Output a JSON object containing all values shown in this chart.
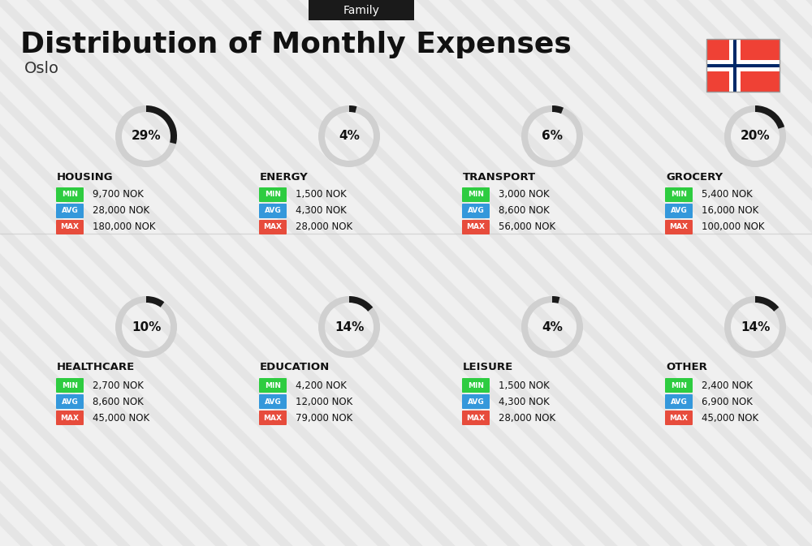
{
  "title": "Distribution of Monthly Expenses",
  "subtitle": "Oslo",
  "family_label": "Family",
  "bg_color": "#f0f0f0",
  "categories": [
    {
      "name": "HOUSING",
      "pct": 29,
      "min_val": "9,700 NOK",
      "avg_val": "28,000 NOK",
      "max_val": "180,000 NOK",
      "row": 0,
      "col": 0
    },
    {
      "name": "ENERGY",
      "pct": 4,
      "min_val": "1,500 NOK",
      "avg_val": "4,300 NOK",
      "max_val": "28,000 NOK",
      "row": 0,
      "col": 1
    },
    {
      "name": "TRANSPORT",
      "pct": 6,
      "min_val": "3,000 NOK",
      "avg_val": "8,600 NOK",
      "max_val": "56,000 NOK",
      "row": 0,
      "col": 2
    },
    {
      "name": "GROCERY",
      "pct": 20,
      "min_val": "5,400 NOK",
      "avg_val": "16,000 NOK",
      "max_val": "100,000 NOK",
      "row": 0,
      "col": 3
    },
    {
      "name": "HEALTHCARE",
      "pct": 10,
      "min_val": "2,700 NOK",
      "avg_val": "8,600 NOK",
      "max_val": "45,000 NOK",
      "row": 1,
      "col": 0
    },
    {
      "name": "EDUCATION",
      "pct": 14,
      "min_val": "4,200 NOK",
      "avg_val": "12,000 NOK",
      "max_val": "79,000 NOK",
      "row": 1,
      "col": 1
    },
    {
      "name": "LEISURE",
      "pct": 4,
      "min_val": "1,500 NOK",
      "avg_val": "4,300 NOK",
      "max_val": "28,000 NOK",
      "row": 1,
      "col": 2
    },
    {
      "name": "OTHER",
      "pct": 14,
      "min_val": "2,400 NOK",
      "avg_val": "6,900 NOK",
      "max_val": "45,000 NOK",
      "row": 1,
      "col": 3
    }
  ],
  "min_color": "#2ecc40",
  "avg_color": "#3498db",
  "max_color": "#e74c3c",
  "label_color": "#ffffff",
  "donut_active_color": "#1a1a1a",
  "donut_inactive_color": "#d0d0d0",
  "norway_colors": [
    "#ef4135",
    "#002868"
  ],
  "header_bg": "#1a1a1a",
  "header_text": "#ffffff"
}
